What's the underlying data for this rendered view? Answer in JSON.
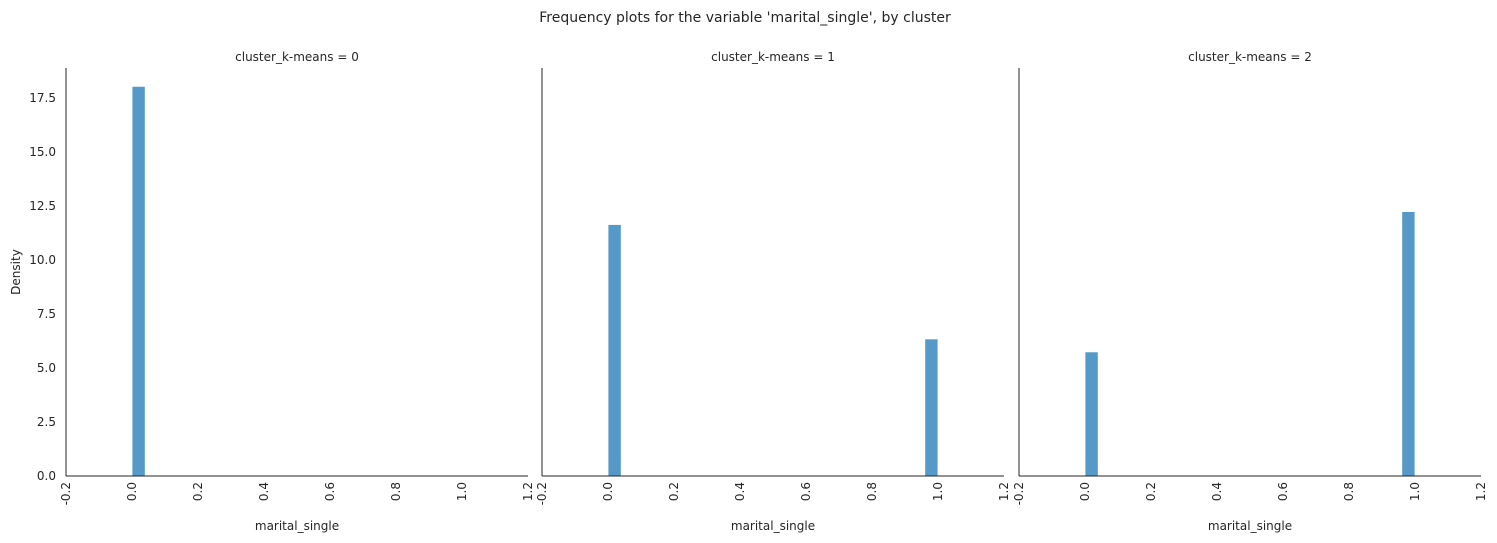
{
  "figure": {
    "title": "Frequency plots for the variable 'marital_single', by cluster"
  },
  "colors": {
    "bar": "#5499c7",
    "bar_edge": "#ffffff",
    "axis": "#262626",
    "background": "#ffffff"
  },
  "chart_data": [
    {
      "type": "bar",
      "title": "cluster_k-means = 0",
      "xlabel": "marital_single",
      "ylabel": "Density",
      "xlim": [
        -0.2,
        1.2
      ],
      "ylim": [
        0,
        18.9
      ],
      "xticks": [
        "-0.2",
        "0.0",
        "0.2",
        "0.4",
        "0.6",
        "0.8",
        "1.0",
        "1.2"
      ],
      "yticks": [
        "0.0",
        "2.5",
        "5.0",
        "7.5",
        "10.0",
        "12.5",
        "15.0",
        "17.5"
      ],
      "bin_width": 0.04,
      "bars": [
        {
          "x": 0.0,
          "value": 18.05
        }
      ]
    },
    {
      "type": "bar",
      "title": "cluster_k-means = 1",
      "xlabel": "marital_single",
      "ylabel": "",
      "xlim": [
        -0.2,
        1.2
      ],
      "ylim": [
        0,
        18.9
      ],
      "xticks": [
        "-0.2",
        "0.0",
        "0.2",
        "0.4",
        "0.6",
        "0.8",
        "1.0",
        "1.2"
      ],
      "yticks": [],
      "bin_width": 0.04,
      "bars": [
        {
          "x": 0.0,
          "value": 11.65
        },
        {
          "x": 0.96,
          "value": 6.35
        }
      ]
    },
    {
      "type": "bar",
      "title": "cluster_k-means = 2",
      "xlabel": "marital_single",
      "ylabel": "",
      "xlim": [
        -0.2,
        1.2
      ],
      "ylim": [
        0,
        18.9
      ],
      "xticks": [
        "-0.2",
        "0.0",
        "0.2",
        "0.4",
        "0.6",
        "0.8",
        "1.0",
        "1.2"
      ],
      "yticks": [],
      "bin_width": 0.04,
      "bars": [
        {
          "x": 0.0,
          "value": 5.75
        },
        {
          "x": 0.96,
          "value": 12.25
        }
      ]
    }
  ]
}
